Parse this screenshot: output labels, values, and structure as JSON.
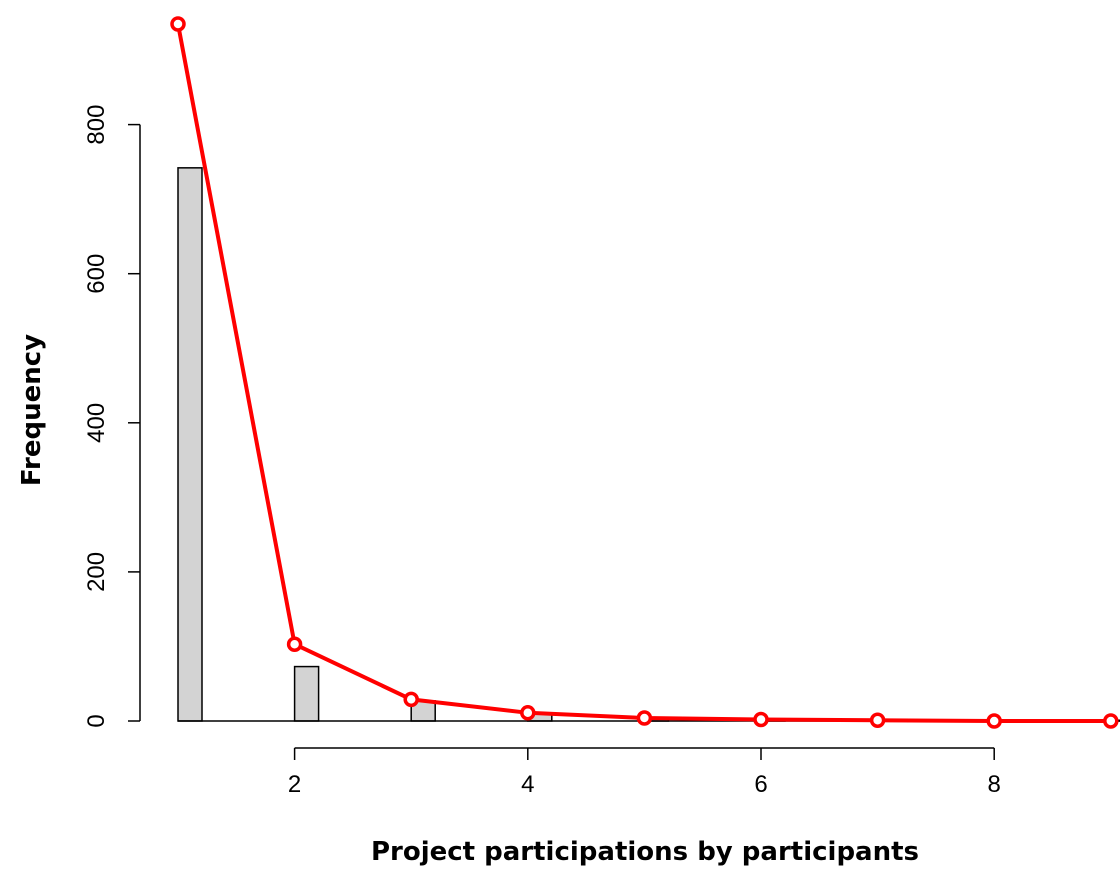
{
  "chart_data": {
    "type": "bar",
    "xlabel": "Project participations by participants",
    "ylabel": "Frequency",
    "x_ticks": [
      2,
      4,
      6,
      8
    ],
    "y_ticks": [
      0,
      200,
      400,
      600,
      800
    ],
    "xlim": [
      1,
      9
    ],
    "ylim": [
      0,
      940
    ],
    "bars": [
      {
        "x": 1,
        "value": 742
      },
      {
        "x": 2,
        "value": 73
      },
      {
        "x": 3,
        "value": 27
      },
      {
        "x": 4,
        "value": 10
      },
      {
        "x": 5,
        "value": 4
      },
      {
        "x": 6,
        "value": 3
      },
      {
        "x": 7,
        "value": 2
      },
      {
        "x": 8,
        "value": 1
      },
      {
        "x": 9,
        "value": 1
      }
    ],
    "series": [
      {
        "type": "line",
        "points": [
          {
            "x": 1,
            "y": 935
          },
          {
            "x": 2,
            "y": 103
          },
          {
            "x": 3,
            "y": 29
          },
          {
            "x": 4,
            "y": 11
          },
          {
            "x": 5,
            "y": 4
          },
          {
            "x": 6,
            "y": 2
          },
          {
            "x": 7,
            "y": 1
          },
          {
            "x": 8,
            "y": 0
          },
          {
            "x": 9,
            "y": 0
          }
        ]
      }
    ],
    "colors": {
      "bar_fill": "#d3d3d3",
      "bar_stroke": "#000000",
      "line": "#ff0000"
    },
    "grid": false,
    "legend": "none"
  }
}
